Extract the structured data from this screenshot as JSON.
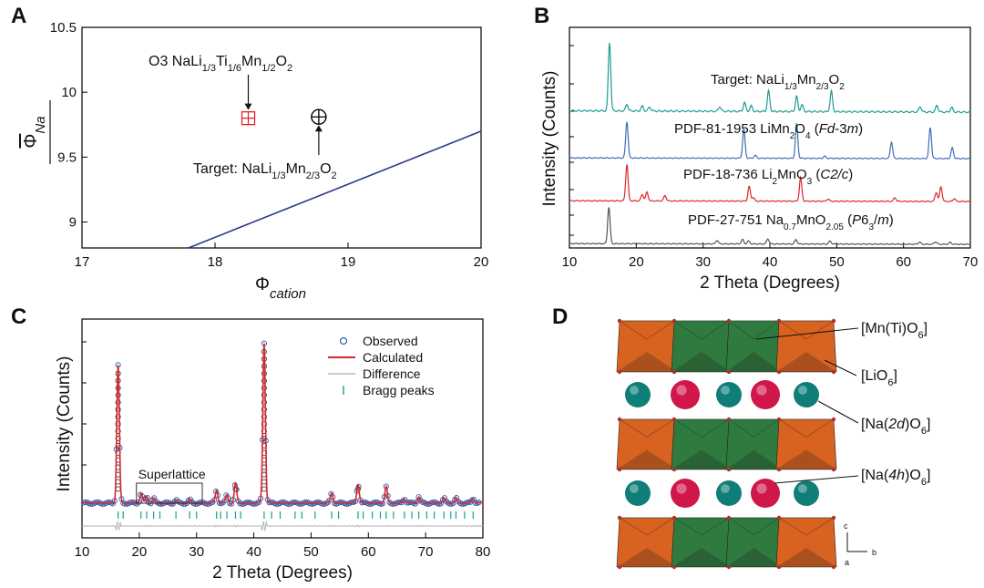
{
  "chart_data": [
    {
      "panel": "A",
      "type": "scatter",
      "xlabel_symbol": "Φ",
      "xlabel_sub": "cation",
      "ylabel_symbol": "Φ",
      "ylabel_sub": "Na",
      "xlim": [
        17,
        20
      ],
      "ylim": [
        8.8,
        10.5
      ],
      "xticks": [
        17,
        18,
        19,
        20
      ],
      "yticks": [
        9,
        9.5,
        10,
        10.5
      ],
      "xtick_labels": [
        "17",
        "18",
        "19",
        "20"
      ],
      "ytick_labels": [
        "9",
        "9.5",
        "10",
        "10.5"
      ],
      "line": {
        "x": [
          17.8,
          20
        ],
        "y": [
          8.8,
          9.7
        ],
        "color": "#2b3c8c"
      },
      "points": [
        {
          "name": "O3 NaLi1/3Ti1/6Mn1/2O2",
          "x": 18.25,
          "y": 9.8,
          "marker": "boxplus",
          "color": "#e0262b"
        },
        {
          "name": "Target: NaLi1/3Mn2/3O2",
          "x": 18.78,
          "y": 9.81,
          "marker": "oplus",
          "color": "#000000"
        }
      ],
      "annotations": [
        {
          "id": "o3",
          "parts": [
            [
              "O3 NaLi",
              ""
            ],
            [
              "1/3",
              "sub"
            ],
            [
              "Ti",
              ""
            ],
            [
              "1/6",
              "sub"
            ],
            [
              "Mn",
              ""
            ],
            [
              "1/2",
              "sub"
            ],
            [
              "O",
              ""
            ],
            [
              "2",
              "sub"
            ]
          ]
        },
        {
          "id": "target",
          "parts": [
            [
              "Target: NaLi",
              ""
            ],
            [
              "1/3",
              "sub"
            ],
            [
              "Mn",
              ""
            ],
            [
              "2/3",
              "sub"
            ],
            [
              "O",
              ""
            ],
            [
              "2",
              "sub"
            ]
          ]
        }
      ]
    },
    {
      "panel": "B",
      "type": "line",
      "xlabel": "2 Theta (Degrees)",
      "ylabel": "Intensity (Counts)",
      "xlim": [
        10,
        70
      ],
      "xticks": [
        10,
        20,
        30,
        40,
        50,
        60,
        70
      ],
      "xtick_labels": [
        "10",
        "20",
        "30",
        "40",
        "50",
        "60",
        "70"
      ],
      "series": [
        {
          "name": "Target: NaLi1/3Mn2/3O2",
          "color": "#1a9c94",
          "parts": [
            [
              "Target: NaLi",
              ""
            ],
            [
              "1/3",
              "sub"
            ],
            [
              "Mn",
              ""
            ],
            [
              "2/3",
              "sub"
            ],
            [
              "O",
              ""
            ],
            [
              "2",
              "sub"
            ]
          ],
          "peaks": [
            [
              16,
              1
            ],
            [
              18.6,
              0.1
            ],
            [
              20.9,
              0.07
            ],
            [
              22,
              0.06
            ],
            [
              32.5,
              0.07
            ],
            [
              36.2,
              0.13
            ],
            [
              37.2,
              0.08
            ],
            [
              39.8,
              0.3
            ],
            [
              44,
              0.22
            ],
            [
              44.8,
              0.1
            ],
            [
              49.2,
              0.3
            ],
            [
              62.5,
              0.08
            ],
            [
              65,
              0.1
            ],
            [
              67.2,
              0.07
            ]
          ]
        },
        {
          "name": "PDF-81-1953 LiMn2O4 (Fd-3m)",
          "color": "#3d6fb5",
          "parts": [
            [
              "PDF-81-1953 LiMn",
              ""
            ],
            [
              "2",
              "sub"
            ],
            [
              "O",
              ""
            ],
            [
              "4",
              "sub"
            ],
            [
              " (",
              ""
            ],
            [
              "Fd",
              "i"
            ],
            [
              "-3",
              ""
            ],
            [
              "m",
              "i"
            ],
            [
              ")",
              ""
            ]
          ],
          "peaks": [
            [
              18.6,
              1
            ],
            [
              36.1,
              0.8
            ],
            [
              37.8,
              0.08
            ],
            [
              44,
              0.95
            ],
            [
              48.2,
              0.06
            ],
            [
              58.2,
              0.45
            ],
            [
              64,
              0.85
            ],
            [
              67.3,
              0.3
            ]
          ]
        },
        {
          "name": "PDF-18-736 Li2MnO3 (C2/c)",
          "color": "#e0262b",
          "parts": [
            [
              "PDF-18-736 Li",
              ""
            ],
            [
              "2",
              "sub"
            ],
            [
              "MnO",
              ""
            ],
            [
              "3",
              "sub"
            ],
            [
              " (",
              ""
            ],
            [
              "C2/c",
              "i"
            ],
            [
              ")",
              ""
            ]
          ],
          "peaks": [
            [
              18.6,
              1
            ],
            [
              20.9,
              0.18
            ],
            [
              21.6,
              0.24
            ],
            [
              24.3,
              0.15
            ],
            [
              36.9,
              0.4
            ],
            [
              37.5,
              0.1
            ],
            [
              44.6,
              0.65
            ],
            [
              48.7,
              0.06
            ],
            [
              58.7,
              0.1
            ],
            [
              64.9,
              0.25
            ],
            [
              65.6,
              0.4
            ],
            [
              67.6,
              0.08
            ]
          ]
        },
        {
          "name": "PDF-27-751 Na0.7MnO2.05 (P63/m)",
          "color": "#555555",
          "parts": [
            [
              "PDF-27-751 Na",
              ""
            ],
            [
              "0.7",
              "sub"
            ],
            [
              "MnO",
              ""
            ],
            [
              "2.05",
              "sub"
            ],
            [
              " (",
              ""
            ],
            [
              "P",
              "i"
            ],
            [
              "6",
              ""
            ],
            [
              "3",
              "sub"
            ],
            [
              "/",
              ""
            ],
            [
              "m",
              "i"
            ],
            [
              ")",
              ""
            ]
          ],
          "peaks": [
            [
              15.9,
              1
            ],
            [
              32.1,
              0.1
            ],
            [
              35.9,
              0.12
            ],
            [
              36.8,
              0.08
            ],
            [
              39.7,
              0.14
            ],
            [
              43.9,
              0.12
            ],
            [
              49,
              0.08
            ],
            [
              62.4,
              0.06
            ],
            [
              64.8,
              0.07
            ],
            [
              67,
              0.05
            ]
          ]
        }
      ]
    },
    {
      "panel": "C",
      "type": "line",
      "xlabel": "2 Theta (Degrees)",
      "ylabel": "Intensity (Counts)",
      "xlim": [
        10,
        80
      ],
      "xticks": [
        10,
        20,
        30,
        40,
        50,
        60,
        70,
        80
      ],
      "xtick_labels": [
        "10",
        "20",
        "30",
        "40",
        "50",
        "60",
        "70",
        "80"
      ],
      "legend": [
        "Observed",
        "Calculated",
        "Difference",
        "Bragg peaks"
      ],
      "box_label": "Superlattice",
      "box_range": [
        19.5,
        31
      ],
      "series": [
        {
          "name": "Observed",
          "color": "#2f5fb3",
          "marker": "circle"
        },
        {
          "name": "Calculated",
          "color": "#d8282e"
        },
        {
          "name": "Difference",
          "color": "#b8b8b8"
        },
        {
          "name": "Bragg peaks",
          "color": "#1a9c94"
        }
      ],
      "peaks": [
        [
          16.3,
          0.86
        ],
        [
          20.3,
          0.06
        ],
        [
          21.3,
          0.04
        ],
        [
          22.5,
          0.03
        ],
        [
          26.4,
          0.02
        ],
        [
          28.8,
          0.02
        ],
        [
          33.5,
          0.08
        ],
        [
          35.3,
          0.05
        ],
        [
          36.8,
          0.12
        ],
        [
          41.8,
          1
        ],
        [
          53.6,
          0.06
        ],
        [
          58.2,
          0.12
        ],
        [
          63.1,
          0.1
        ],
        [
          66.3,
          0.03
        ],
        [
          68.8,
          0.04
        ],
        [
          73.2,
          0.03
        ],
        [
          75.3,
          0.03
        ],
        [
          78.3,
          0.03
        ]
      ],
      "bragg": [
        16.3,
        17.2,
        20.3,
        21.3,
        22.5,
        23.6,
        26.4,
        28.8,
        30,
        33.5,
        34.2,
        35.3,
        36.8,
        37.7,
        41.8,
        43.1,
        44.6,
        47.2,
        48.4,
        50.7,
        53.6,
        54.8,
        58.2,
        59.1,
        60.7,
        62.1,
        63.1,
        64.4,
        66.3,
        67.6,
        68.8,
        70.2,
        71.5,
        73.2,
        74.4,
        75.3,
        76.8,
        78.3
      ]
    },
    {
      "panel": "D",
      "type": "other",
      "labels": [
        {
          "id": "mnti",
          "parts": [
            [
              "[Mn(Ti)O",
              ""
            ],
            [
              "6",
              "sub"
            ],
            [
              "]",
              ""
            ]
          ]
        },
        {
          "id": "lio",
          "parts": [
            [
              "[LiO",
              ""
            ],
            [
              "6",
              "sub"
            ],
            [
              "]",
              ""
            ]
          ]
        },
        {
          "id": "na2d",
          "parts": [
            [
              "[Na(",
              ""
            ],
            [
              "2d",
              "i"
            ],
            [
              ")O",
              ""
            ],
            [
              "6",
              "sub"
            ],
            [
              "]",
              ""
            ]
          ]
        },
        {
          "id": "na4h",
          "parts": [
            [
              "[Na(",
              ""
            ],
            [
              "4h",
              "i"
            ],
            [
              ")O",
              ""
            ],
            [
              "6",
              "sub"
            ],
            [
              "]",
              ""
            ]
          ]
        }
      ],
      "axes": [
        "c",
        "b",
        "a"
      ],
      "colors": {
        "mn_octa": "#2f7a3e",
        "li_octa": "#d8621f",
        "na_2d": "#0f7d78",
        "na_4h": "#d0174a"
      }
    }
  ],
  "panels": {
    "a": "A",
    "b": "B",
    "c": "C",
    "d": "D"
  }
}
